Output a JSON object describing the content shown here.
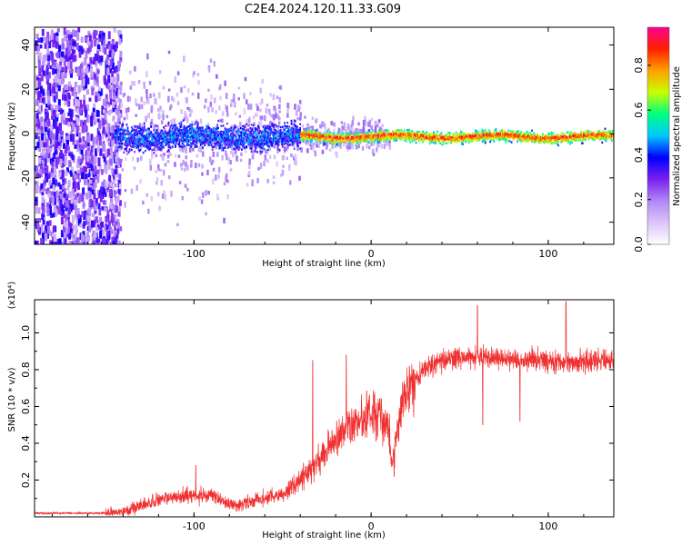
{
  "title": "C2E4.2024.120.11.33.G09",
  "chart_data": [
    {
      "type": "heatmap",
      "xlabel": "Height of straight line (km)",
      "ylabel": "Frequency (Hz)",
      "xlim": [
        -190,
        137
      ],
      "ylim": [
        -50,
        48
      ],
      "x_ticks": [
        -100,
        0,
        100
      ],
      "x_tick_labels": [
        "-100",
        "0",
        "100"
      ],
      "y_ticks": [
        -40,
        -20,
        0,
        20,
        40
      ],
      "y_tick_labels": [
        "-40",
        "-20",
        "0",
        "20",
        "40"
      ],
      "colorbar": {
        "label": "Normalized spectral amplitude",
        "range": [
          0,
          0.97
        ],
        "ticks": [
          0,
          0.2,
          0.4,
          0.6,
          0.8
        ],
        "tick_labels": [
          "0.0",
          "0.2",
          "0.4",
          "0.6",
          "0.8"
        ],
        "colors": [
          "#ffffff",
          "#dcc4fb",
          "#b088f5",
          "#7a1ff0",
          "#0000ff",
          "#00c8ff",
          "#00ff80",
          "#c8ff00",
          "#ffa000",
          "#ff2000",
          "#ff0090"
        ]
      },
      "grid": false
    },
    {
      "type": "line",
      "xlabel": "Height of straight line (km)",
      "ylabel": "SNR (10 * v/v)",
      "multiplier": "(x10⁴)",
      "xlim": [
        -190,
        137
      ],
      "ylim": [
        0,
        1.18
      ],
      "x_ticks": [
        -100,
        0,
        100
      ],
      "x_tick_labels": [
        "-100",
        "0",
        "100"
      ],
      "y_ticks": [
        0.2,
        0.4,
        0.6,
        0.8,
        1.0
      ],
      "y_tick_labels": [
        "0.2",
        "0.4",
        "0.6",
        "0.8",
        "1.0"
      ],
      "color": "#f03030",
      "profile": {
        "x": [
          -190,
          -150,
          -140,
          -130,
          -120,
          -110,
          -100,
          -90,
          -80,
          -75,
          -70,
          -60,
          -50,
          -45,
          -40,
          -35,
          -30,
          -25,
          -20,
          -15,
          -10,
          -5,
          0,
          5,
          10,
          12,
          14,
          18,
          20,
          25,
          30,
          40,
          50,
          60,
          80,
          100,
          120,
          137
        ],
        "y": [
          0.02,
          0.02,
          0.03,
          0.06,
          0.09,
          0.11,
          0.12,
          0.11,
          0.07,
          0.06,
          0.08,
          0.1,
          0.12,
          0.16,
          0.2,
          0.25,
          0.3,
          0.36,
          0.42,
          0.47,
          0.5,
          0.53,
          0.56,
          0.55,
          0.48,
          0.3,
          0.45,
          0.62,
          0.7,
          0.75,
          0.8,
          0.85,
          0.86,
          0.87,
          0.86,
          0.85,
          0.84,
          0.86
        ]
      },
      "spikes": [
        {
          "x": -99,
          "y": 0.28
        },
        {
          "x": -33,
          "y": 0.85
        },
        {
          "x": -14,
          "y": 0.88
        },
        {
          "x": 13,
          "y": 0.22
        },
        {
          "x": 60,
          "y": 1.15
        },
        {
          "x": 110,
          "y": 1.17
        },
        {
          "x": 63,
          "y": 0.5
        },
        {
          "x": 84,
          "y": 0.52
        }
      ],
      "grid": false
    }
  ]
}
